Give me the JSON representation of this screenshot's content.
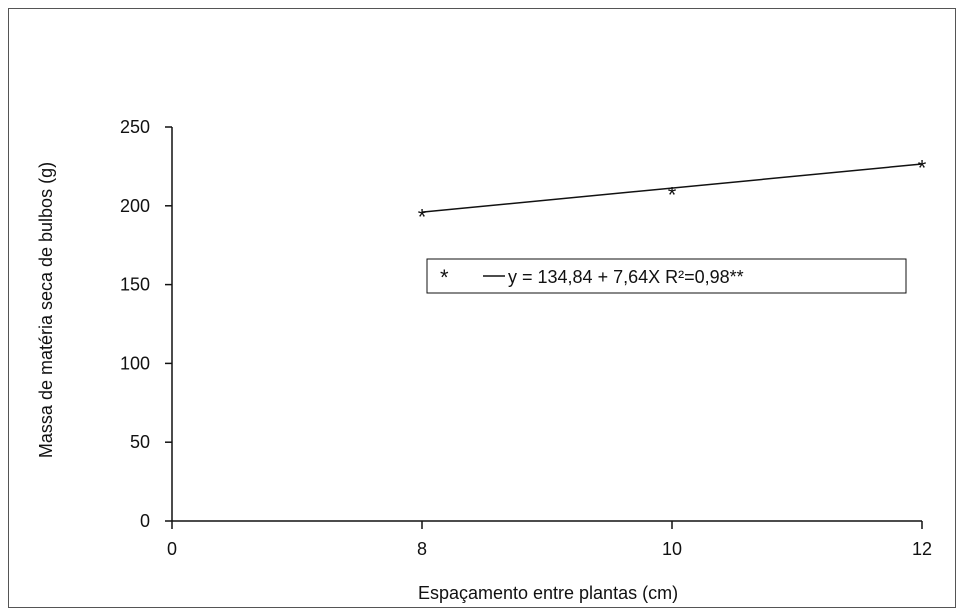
{
  "chart_data": {
    "type": "scatter",
    "title": "",
    "xlabel": "Espaçamento entre plantas (cm)",
    "ylabel": "Massa de matéria seca de bulbos (g)",
    "x_categories": [
      "0",
      "8",
      "10",
      "12"
    ],
    "ylim": [
      0,
      250
    ],
    "yticks": [
      "0",
      "50",
      "100",
      "150",
      "200",
      "250"
    ],
    "series": [
      {
        "marker": "*",
        "points": [
          {
            "x": 8,
            "y": 197
          },
          {
            "x": 10,
            "y": 211
          },
          {
            "x": 12,
            "y": 228
          }
        ]
      }
    ],
    "fit_line": {
      "intercept": 134.84,
      "slope": 7.64,
      "x_range": [
        8,
        12
      ]
    },
    "legend": {
      "marker": "*",
      "equation": "y = 134,84 + 7,64X  R²=0,98**",
      "placement": "center"
    },
    "grid": false
  }
}
